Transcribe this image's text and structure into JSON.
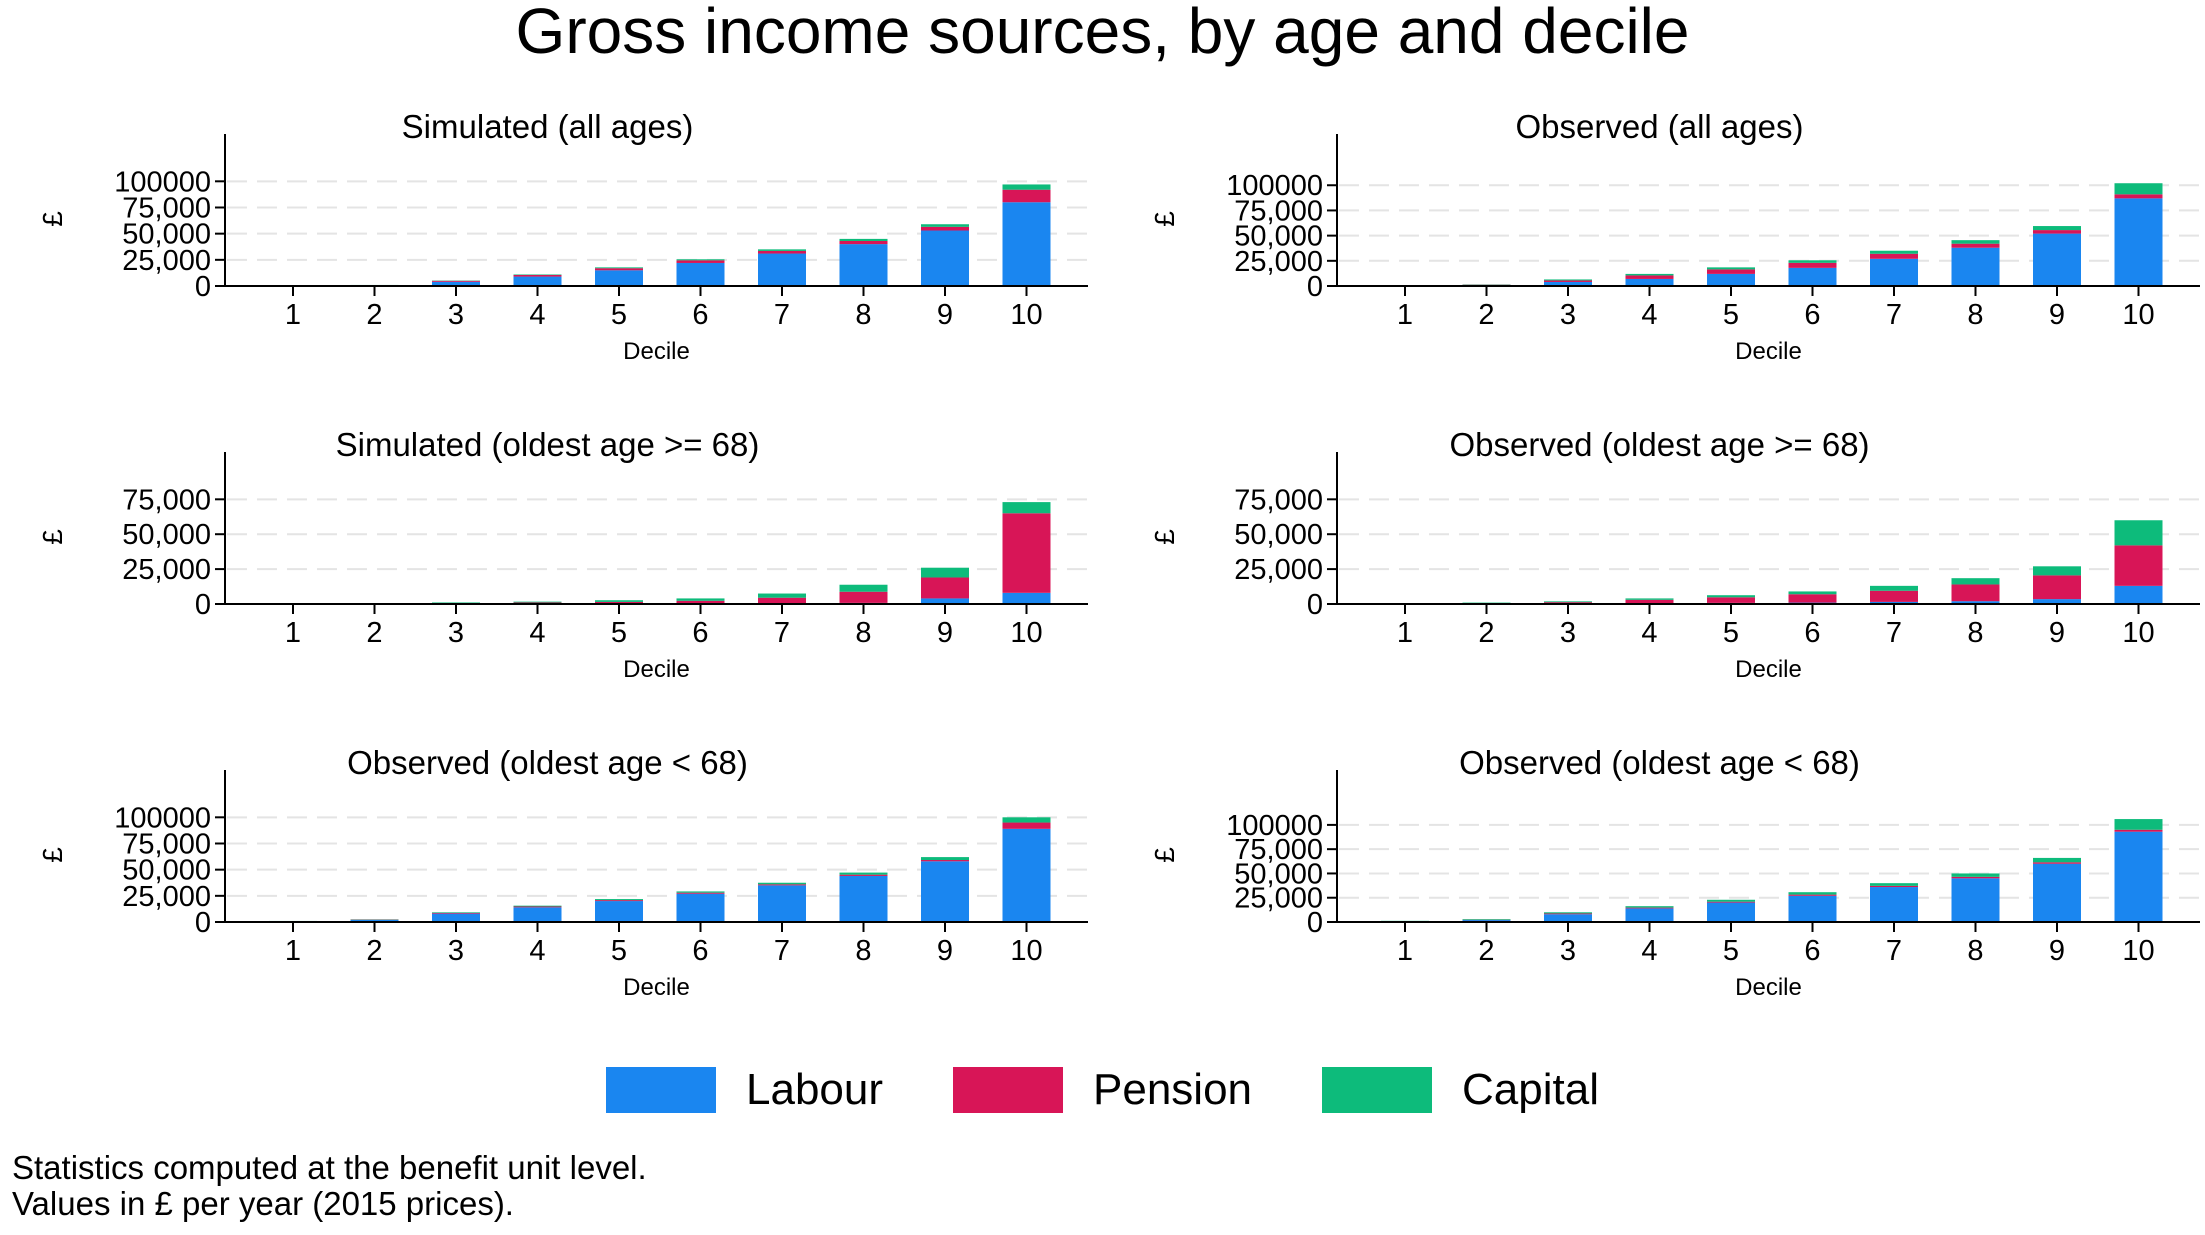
{
  "title": "Gross income sources, by age and decile",
  "legend": [
    {
      "label": "Labour",
      "color": "#1a86f0"
    },
    {
      "label": "Pension",
      "color": "#d81557"
    },
    {
      "label": "Capital",
      "color": "#0dbb7b"
    }
  ],
  "notes": [
    "Statistics computed at the benefit unit level.",
    "Values in £ per year (2015 prices)."
  ],
  "chart_data": [
    {
      "type": "bar",
      "stacked": true,
      "title": "Simulated (all ages)",
      "xlabel": "Decile",
      "ylabel": "£",
      "categories": [
        "1",
        "2",
        "3",
        "4",
        "5",
        "6",
        "7",
        "8",
        "9",
        "10"
      ],
      "yticks": [
        0,
        25000,
        50000,
        75000,
        100000
      ],
      "ytick_labels": [
        "0",
        "25,000",
        "50,000",
        "75,000",
        "100000"
      ],
      "ylim": [
        0,
        128000
      ],
      "series": [
        {
          "name": "Labour",
          "values": [
            300,
            600,
            4000,
            9000,
            15000,
            22000,
            31000,
            40000,
            53000,
            80000
          ]
        },
        {
          "name": "Pension",
          "values": [
            200,
            300,
            1000,
            1500,
            2000,
            2500,
            2500,
            3000,
            3500,
            12000
          ]
        },
        {
          "name": "Capital",
          "values": [
            100,
            100,
            300,
            500,
            800,
            1000,
            1500,
            2000,
            2500,
            5000
          ]
        }
      ]
    },
    {
      "type": "bar",
      "stacked": true,
      "title": "Observed (all ages)",
      "xlabel": "Decile",
      "ylabel": "£",
      "categories": [
        "1",
        "2",
        "3",
        "4",
        "5",
        "6",
        "7",
        "8",
        "9",
        "10"
      ],
      "yticks": [
        0,
        25000,
        50000,
        75000,
        100000
      ],
      "ytick_labels": [
        "0",
        "25,000",
        "50,000",
        "75,000",
        "100000"
      ],
      "ylim": [
        0,
        133000
      ],
      "series": [
        {
          "name": "Labour",
          "values": [
            300,
            800,
            4000,
            7000,
            12000,
            18000,
            27000,
            38000,
            52000,
            87000
          ]
        },
        {
          "name": "Pension",
          "values": [
            300,
            500,
            1500,
            3500,
            4500,
            5000,
            5000,
            4000,
            3500,
            4000
          ]
        },
        {
          "name": "Capital",
          "values": [
            200,
            300,
            1000,
            1500,
            2000,
            2500,
            3000,
            3500,
            4000,
            11000
          ]
        }
      ]
    },
    {
      "type": "bar",
      "stacked": true,
      "title": "Simulated (oldest age >= 68)",
      "xlabel": "Decile",
      "ylabel": "£",
      "categories": [
        "1",
        "2",
        "3",
        "4",
        "5",
        "6",
        "7",
        "8",
        "9",
        "10"
      ],
      "yticks": [
        0,
        25000,
        50000,
        75000
      ],
      "ytick_labels": [
        "0",
        "25,000",
        "50,000",
        "75,000"
      ],
      "ylim": [
        0,
        96000
      ],
      "series": [
        {
          "name": "Labour",
          "values": [
            100,
            100,
            100,
            200,
            200,
            300,
            500,
            800,
            4000,
            8000
          ]
        },
        {
          "name": "Pension",
          "values": [
            300,
            400,
            600,
            900,
            1300,
            2000,
            4000,
            8000,
            15000,
            57000
          ]
        },
        {
          "name": "Capital",
          "values": [
            200,
            200,
            400,
            600,
            1200,
            1700,
            3000,
            5000,
            7000,
            8000
          ]
        }
      ]
    },
    {
      "type": "bar",
      "stacked": true,
      "title": "Observed (oldest age >= 68)",
      "xlabel": "Decile",
      "ylabel": "£",
      "categories": [
        "1",
        "2",
        "3",
        "4",
        "5",
        "6",
        "7",
        "8",
        "9",
        "10"
      ],
      "yticks": [
        0,
        25000,
        50000,
        75000
      ],
      "ytick_labels": [
        "0",
        "25,000",
        "50,000",
        "75,000"
      ],
      "ylim": [
        0,
        96000
      ],
      "series": [
        {
          "name": "Labour",
          "values": [
            200,
            200,
            300,
            500,
            800,
            1000,
            1500,
            2000,
            3500,
            13000
          ]
        },
        {
          "name": "Pension",
          "values": [
            300,
            500,
            1000,
            2500,
            4000,
            6000,
            8000,
            12000,
            17000,
            29000
          ]
        },
        {
          "name": "Capital",
          "values": [
            200,
            300,
            600,
            1000,
            1500,
            2000,
            3500,
            4500,
            6500,
            18000
          ]
        }
      ]
    },
    {
      "type": "bar",
      "stacked": true,
      "title": "Observed (oldest age < 68)",
      "xlabel": "Decile",
      "ylabel": "£",
      "categories": [
        "1",
        "2",
        "3",
        "4",
        "5",
        "6",
        "7",
        "8",
        "9",
        "10"
      ],
      "yticks": [
        0,
        25000,
        50000,
        75000,
        100000
      ],
      "ytick_labels": [
        "0",
        "25,000",
        "50,000",
        "75,000",
        "100000"
      ],
      "ylim": [
        0,
        128000
      ],
      "series": [
        {
          "name": "Labour",
          "values": [
            600,
            2000,
            8000,
            14000,
            20000,
            27000,
            35000,
            44000,
            58000,
            89000
          ]
        },
        {
          "name": "Pension",
          "values": [
            200,
            300,
            700,
            800,
            900,
            1000,
            1000,
            1200,
            1200,
            6000
          ]
        },
        {
          "name": "Capital",
          "values": [
            200,
            300,
            600,
            800,
            1000,
            1200,
            1500,
            2000,
            2800,
            5000
          ]
        }
      ]
    },
    {
      "type": "bar",
      "stacked": true,
      "title": "Observed (oldest age < 68)",
      "xlabel": "Decile",
      "ylabel": "£",
      "categories": [
        "1",
        "2",
        "3",
        "4",
        "5",
        "6",
        "7",
        "8",
        "9",
        "10"
      ],
      "yticks": [
        0,
        25000,
        50000,
        75000,
        100000
      ],
      "ytick_labels": [
        "0",
        "25,000",
        "50,000",
        "75,000",
        "100000"
      ],
      "ylim": [
        0,
        138000
      ],
      "series": [
        {
          "name": "Labour",
          "values": [
            600,
            2000,
            8000,
            14000,
            20000,
            27000,
            36000,
            45000,
            60000,
            93000
          ]
        },
        {
          "name": "Pension",
          "values": [
            300,
            300,
            800,
            800,
            900,
            1200,
            1200,
            1500,
            1500,
            2000
          ]
        },
        {
          "name": "Capital",
          "values": [
            300,
            700,
            1200,
            1500,
            2000,
            2500,
            2800,
            3500,
            4500,
            11000
          ]
        }
      ]
    }
  ]
}
